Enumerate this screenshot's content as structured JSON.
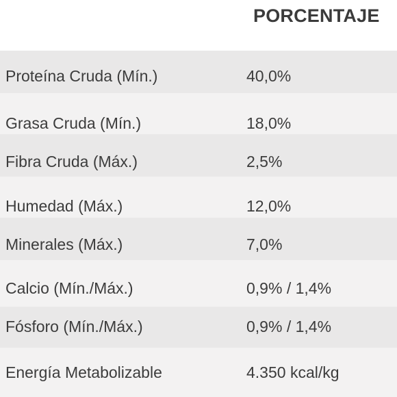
{
  "table": {
    "header": "PORCENTAJE",
    "rows": [
      {
        "name": "Proteína Cruda (Mín.)",
        "value": "40,0%"
      },
      {
        "name": "Grasa Cruda (Mín.)",
        "value": "18,0%"
      },
      {
        "name": "Fibra Cruda (Máx.)",
        "value": "2,5%"
      },
      {
        "name": "Humedad (Máx.)",
        "value": "12,0%"
      },
      {
        "name": "Minerales (Máx.)",
        "value": "7,0%"
      },
      {
        "name": "Calcio (Mín./Máx.)",
        "value": "0,9% / 1,4%"
      },
      {
        "name": "Fósforo (Mín./Máx.)",
        "value": "0,9% / 1,4%"
      },
      {
        "name": "Energía Metabolizable",
        "value": "4.350 kcal/kg"
      }
    ]
  },
  "colors": {
    "shaded_row": "#e9e8e8",
    "light_row": "#f3f2f2",
    "text": "#3c3c3c"
  }
}
